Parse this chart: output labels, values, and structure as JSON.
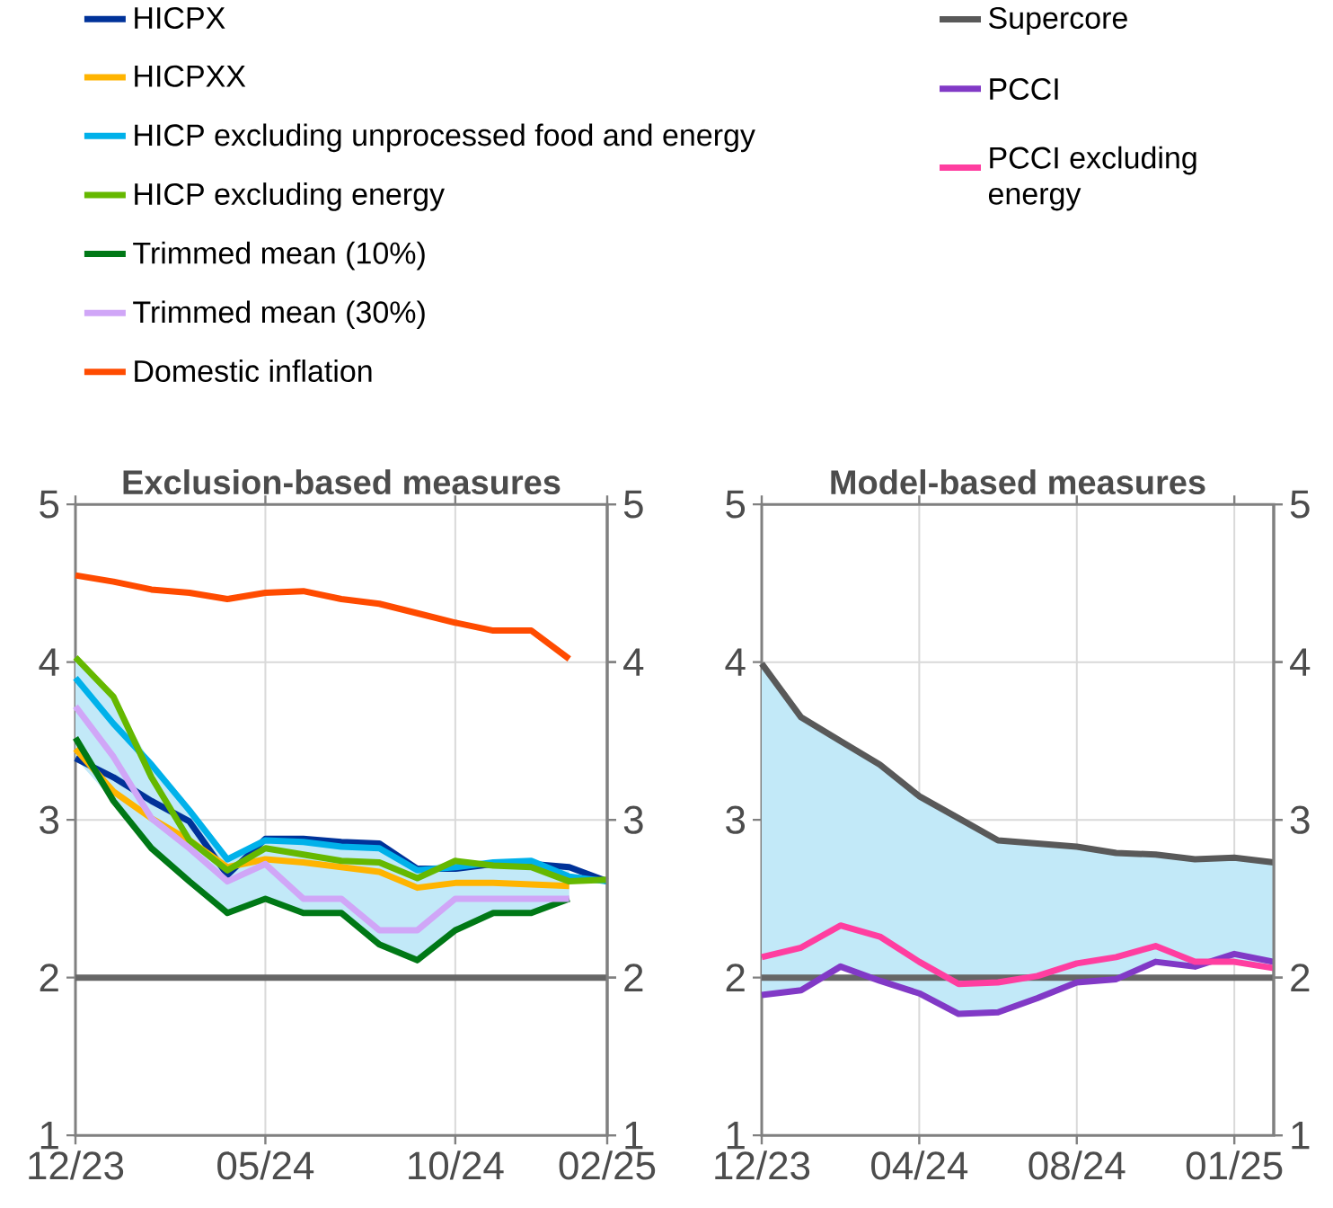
{
  "chart_data": [
    {
      "type": "line",
      "title": "Exclusion-based measures",
      "x": [
        "2023-12",
        "2024-01",
        "2024-02",
        "2024-03",
        "2024-04",
        "2024-05",
        "2024-06",
        "2024-07",
        "2024-08",
        "2024-09",
        "2024-10",
        "2024-11",
        "2024-12",
        "2025-01",
        "2025-02"
      ],
      "series": [
        {
          "name": "HICPX",
          "color": "#003299",
          "values": [
            3.39,
            3.27,
            3.12,
            2.99,
            2.65,
            2.88,
            2.88,
            2.86,
            2.85,
            2.69,
            2.69,
            2.72,
            2.72,
            2.7,
            2.61
          ],
          "lower": [
            3.39,
            3.12,
            2.82,
            2.61,
            2.41,
            2.5,
            2.41,
            2.41,
            2.21,
            2.11,
            2.3,
            2.41,
            2.41,
            2.5,
            null
          ],
          "upper": [
            4.03,
            3.78,
            3.35,
            3.06,
            2.75,
            2.88,
            2.88,
            2.86,
            2.85,
            2.69,
            2.74,
            2.73,
            2.74,
            2.7,
            null
          ]
        },
        {
          "name": "HICPXX",
          "color": "#ffb400",
          "values": [
            3.45,
            3.18,
            3.01,
            2.87,
            2.7,
            2.75,
            2.73,
            2.7,
            2.67,
            2.57,
            2.6,
            2.6,
            2.59,
            2.58,
            null
          ]
        },
        {
          "name": "HICP excluding unprocessed food and energy",
          "color": "#00b1ea",
          "values": [
            3.9,
            3.61,
            3.35,
            3.06,
            2.75,
            2.87,
            2.86,
            2.83,
            2.82,
            2.68,
            2.7,
            2.73,
            2.74,
            2.64,
            2.61
          ]
        },
        {
          "name": "HICP excluding energy",
          "color": "#65b800",
          "values": [
            4.03,
            3.78,
            3.27,
            2.87,
            2.68,
            2.82,
            2.78,
            2.74,
            2.73,
            2.63,
            2.74,
            2.71,
            2.7,
            2.61,
            2.62
          ]
        },
        {
          "name": "Trimmed mean (10%)",
          "color": "#007816",
          "values": [
            3.52,
            3.12,
            2.82,
            2.61,
            2.41,
            2.5,
            2.41,
            2.41,
            2.21,
            2.11,
            2.3,
            2.41,
            2.41,
            2.5,
            null
          ]
        },
        {
          "name": "Trimmed mean (30%)",
          "color": "#d0a6f7",
          "values": [
            3.72,
            3.4,
            3.01,
            2.82,
            2.61,
            2.72,
            2.5,
            2.5,
            2.3,
            2.3,
            2.5,
            2.5,
            2.5,
            2.5,
            null
          ]
        },
        {
          "name": "Domestic inflation",
          "color": "#ff4b00",
          "values": [
            4.55,
            4.51,
            4.46,
            4.44,
            4.4,
            4.44,
            4.45,
            4.4,
            4.37,
            4.31,
            4.25,
            4.2,
            4.2,
            4.02,
            null
          ]
        }
      ],
      "xlim": [
        "2023-12",
        "2025-02"
      ],
      "xticks": [
        {
          "value": "2023-12",
          "label": "12/23"
        },
        {
          "value": "2024-05",
          "label": "05/24"
        },
        {
          "value": "2024-10",
          "label": "10/24"
        },
        {
          "value": "2025-02",
          "label": "02/25"
        }
      ],
      "ylim": [
        1,
        5
      ],
      "yticks": [
        1,
        2,
        3,
        4,
        5
      ],
      "y2lim": [
        1,
        5
      ],
      "y2ticks": [
        1,
        2,
        3,
        4,
        5
      ],
      "ref_lines": [
        {
          "axis": "y",
          "value": 2,
          "color": "#666666"
        }
      ],
      "grid": true,
      "legend": "top"
    },
    {
      "type": "line",
      "title": "Model-based measures",
      "x": [
        "2023-12",
        "2024-01",
        "2024-02",
        "2024-03",
        "2024-04",
        "2024-05",
        "2024-06",
        "2024-07",
        "2024-08",
        "2024-09",
        "2024-10",
        "2024-11",
        "2024-12",
        "2025-01"
      ],
      "series": [
        {
          "name": "Supercore",
          "color": "#595959",
          "values": [
            3.99,
            3.65,
            3.5,
            3.35,
            3.15,
            3.01,
            2.87,
            2.85,
            2.83,
            2.79,
            2.78,
            2.75,
            2.76,
            2.73
          ],
          "lower": [
            1.89,
            1.92,
            2.07,
            1.98,
            1.9,
            1.77,
            1.78,
            1.87,
            1.97,
            1.99,
            2.1,
            2.07,
            2.1,
            2.06
          ],
          "upper": [
            3.99,
            3.65,
            3.5,
            3.35,
            3.15,
            3.01,
            2.87,
            2.85,
            2.83,
            2.79,
            2.78,
            2.75,
            2.76,
            2.73
          ]
        },
        {
          "name": "PCCI",
          "color": "#8139c6",
          "values": [
            1.89,
            1.92,
            2.07,
            1.98,
            1.9,
            1.77,
            1.78,
            1.87,
            1.97,
            1.99,
            2.1,
            2.07,
            2.15,
            2.1
          ]
        },
        {
          "name": "PCCI excluding energy",
          "color": "#ff3ea0",
          "values": [
            2.13,
            2.19,
            2.33,
            2.26,
            2.1,
            1.96,
            1.97,
            2.01,
            2.09,
            2.13,
            2.2,
            2.1,
            2.1,
            2.06
          ]
        }
      ],
      "xlim": [
        "2023-12",
        "2025-01"
      ],
      "xticks": [
        {
          "value": "2023-12",
          "label": "12/23"
        },
        {
          "value": "2024-04",
          "label": "04/24"
        },
        {
          "value": "2024-08",
          "label": "08/24"
        },
        {
          "value": "2024-12",
          "label": "01/25"
        }
      ],
      "ylim": [
        1,
        5
      ],
      "yticks": [
        1,
        2,
        3,
        4,
        5
      ],
      "y2lim": [
        1,
        5
      ],
      "y2ticks": [
        1,
        2,
        3,
        4,
        5
      ],
      "ref_lines": [
        {
          "axis": "y",
          "value": 2,
          "color": "#666666"
        }
      ],
      "grid": true,
      "legend": "top"
    }
  ]
}
